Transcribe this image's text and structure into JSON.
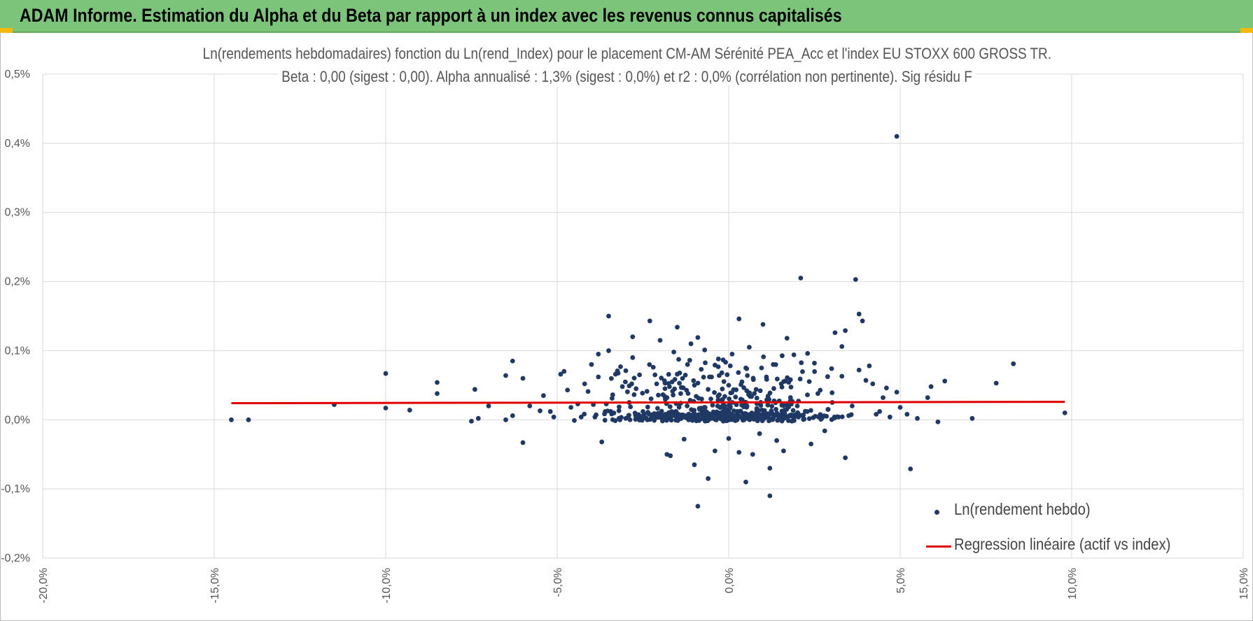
{
  "header": {
    "title": "ADAM Informe. Estimation du Alpha et du Beta par rapport à un index avec les revenus connus capitalisés"
  },
  "colors": {
    "banner": "#7dc47b",
    "accent_corner": "#f2b90f",
    "points": "#1f3864",
    "regression": "#e00000",
    "grid": "#d9d9d9"
  },
  "chart_data": {
    "type": "scatter",
    "title_line1": "Ln(rendements hebdomadaires) fonction du Ln(rend_Index) pour le placement CM-AM Sérénité PEA_Acc et l'index EU STOXX 600 GROSS TR.",
    "title_line2": "Beta : 0,00 (sigest : 0,00). Alpha annualisé : 1,3% (sigest : 0,0%) et r2 : 0,0% (corrélation non pertinente). Sig résidu F",
    "xlim": [
      -20,
      15
    ],
    "ylim": [
      -0.2,
      0.5
    ],
    "x_ticks": [
      -20,
      -15,
      -10,
      -5,
      0,
      5,
      10,
      15
    ],
    "x_tick_labels": [
      "-20,0%",
      "-15,0%",
      "-10,0%",
      "-5,0%",
      "0,0%",
      "5,0%",
      "10,0%",
      "15,0%"
    ],
    "y_ticks": [
      -0.2,
      -0.1,
      0.0,
      0.1,
      0.2,
      0.3,
      0.4,
      0.5
    ],
    "y_tick_labels": [
      "-0,2%",
      "-0,1%",
      "0,0%",
      "0,1%",
      "0,2%",
      "0,3%",
      "0,4%",
      "0,5%"
    ],
    "grid": true,
    "legend_position": "bottom-right",
    "series": [
      {
        "name": "Ln(rendement hebdo)",
        "kind": "scatter",
        "points": [
          [
            -14.5,
            0.0
          ],
          [
            -14.0,
            0.0
          ],
          [
            -11.5,
            0.022
          ],
          [
            -10.0,
            0.067
          ],
          [
            -10.0,
            0.017
          ],
          [
            -9.3,
            0.014
          ],
          [
            -8.5,
            0.054
          ],
          [
            -8.5,
            0.038
          ],
          [
            -7.5,
            -0.002
          ],
          [
            -7.4,
            0.044
          ],
          [
            -7.3,
            0.002
          ],
          [
            -7.0,
            0.02
          ],
          [
            -6.5,
            0.064
          ],
          [
            -6.3,
            0.085
          ],
          [
            -6.0,
            0.06
          ],
          [
            -6.0,
            -0.033
          ],
          [
            -6.5,
            0.0
          ],
          [
            -6.3,
            0.006
          ],
          [
            -5.8,
            0.02
          ],
          [
            -5.5,
            0.013
          ],
          [
            -5.4,
            0.035
          ],
          [
            -5.2,
            0.012
          ],
          [
            -5.1,
            0.004
          ],
          [
            -4.9,
            0.066
          ],
          [
            -4.8,
            0.07
          ],
          [
            -4.7,
            0.043
          ],
          [
            -4.6,
            0.018
          ],
          [
            -4.5,
            -0.001
          ],
          [
            -4.4,
            0.023
          ],
          [
            -4.3,
            0.004
          ],
          [
            -4.2,
            0.052
          ],
          [
            -4.1,
            0.041
          ],
          [
            -4.0,
            0.08
          ],
          [
            -3.9,
            0.004
          ],
          [
            -3.8,
            0.062
          ],
          [
            -3.8,
            0.095
          ],
          [
            -3.7,
            -0.032
          ],
          [
            -3.6,
            0.012
          ],
          [
            -3.5,
            0.1
          ],
          [
            -3.5,
            0.15
          ],
          [
            -3.4,
            0.031
          ],
          [
            -3.3,
            0.066
          ],
          [
            -3.2,
            0.002
          ],
          [
            -3.1,
            0.048
          ],
          [
            -3.0,
            0.071
          ],
          [
            -3.0,
            0.002
          ],
          [
            -2.9,
            0.025
          ],
          [
            -2.8,
            0.12
          ],
          [
            -2.8,
            0.09
          ],
          [
            -2.7,
            0.045
          ],
          [
            -2.6,
            0.065
          ],
          [
            -2.5,
            0.012
          ],
          [
            -2.4,
            0.002
          ],
          [
            -2.3,
            0.143
          ],
          [
            -2.2,
            0.076
          ],
          [
            -2.1,
            0.052
          ],
          [
            -2.0,
            0.115
          ],
          [
            -1.9,
            0.003
          ],
          [
            -1.8,
            -0.05
          ],
          [
            -1.8,
            0.032
          ],
          [
            -1.7,
            -0.052
          ],
          [
            -1.6,
            0.098
          ],
          [
            -1.5,
            0.066
          ],
          [
            -1.5,
            0.134
          ],
          [
            -1.4,
            0.024
          ],
          [
            -1.3,
            -0.028
          ],
          [
            -1.2,
            0.08
          ],
          [
            -1.1,
            0.11
          ],
          [
            -1.1,
            0.003
          ],
          [
            -1.0,
            -0.065
          ],
          [
            -1.0,
            0.05
          ],
          [
            -0.9,
            0.119
          ],
          [
            -0.9,
            -0.125
          ],
          [
            -0.8,
            0.073
          ],
          [
            -0.8,
            0.017
          ],
          [
            -0.7,
            0.101
          ],
          [
            -0.6,
            -0.085
          ],
          [
            -0.6,
            0.044
          ],
          [
            -0.5,
            0.062
          ],
          [
            -0.5,
            0.002
          ],
          [
            -0.4,
            -0.045
          ],
          [
            -0.3,
            0.088
          ],
          [
            -0.2,
            0.068
          ],
          [
            -0.1,
            0.004
          ],
          [
            0.0,
            -0.027
          ],
          [
            0.0,
            0.05
          ],
          [
            0.1,
            0.095
          ],
          [
            0.2,
            0.033
          ],
          [
            0.3,
            0.146
          ],
          [
            0.3,
            -0.047
          ],
          [
            0.4,
            0.002
          ],
          [
            0.5,
            0.075
          ],
          [
            0.5,
            -0.09
          ],
          [
            0.6,
            0.105
          ],
          [
            0.7,
            -0.05
          ],
          [
            0.8,
            0.044
          ],
          [
            0.9,
            -0.02
          ],
          [
            0.9,
            0.004
          ],
          [
            1.0,
            0.138
          ],
          [
            1.1,
            0.062
          ],
          [
            1.2,
            -0.07
          ],
          [
            1.2,
            -0.11
          ],
          [
            1.3,
            0.08
          ],
          [
            1.4,
            -0.03
          ],
          [
            1.5,
            0.003
          ],
          [
            1.6,
            -0.045
          ],
          [
            1.7,
            0.118
          ],
          [
            1.8,
            0.058
          ],
          [
            1.9,
            0.094
          ],
          [
            2.0,
            0.02
          ],
          [
            2.1,
            0.205
          ],
          [
            2.2,
            0.001
          ],
          [
            2.3,
            0.096
          ],
          [
            2.4,
            -0.035
          ],
          [
            2.5,
            0.082
          ],
          [
            2.6,
            0.038
          ],
          [
            2.7,
            0.004
          ],
          [
            2.8,
            -0.016
          ],
          [
            2.9,
            0.015
          ],
          [
            3.0,
            0.074
          ],
          [
            3.1,
            0.126
          ],
          [
            3.2,
            0.004
          ],
          [
            3.3,
            0.063
          ],
          [
            3.3,
            0.106
          ],
          [
            3.4,
            0.129
          ],
          [
            3.4,
            -0.055
          ],
          [
            3.5,
            0.006
          ],
          [
            3.6,
            0.02
          ],
          [
            3.7,
            0.203
          ],
          [
            3.8,
            0.072
          ],
          [
            3.8,
            0.153
          ],
          [
            3.9,
            0.143
          ],
          [
            4.0,
            0.057
          ],
          [
            4.1,
            0.078
          ],
          [
            4.2,
            0.052
          ],
          [
            4.3,
            0.008
          ],
          [
            4.4,
            0.012
          ],
          [
            4.5,
            0.032
          ],
          [
            4.6,
            0.046
          ],
          [
            4.7,
            0.004
          ],
          [
            4.9,
            0.41
          ],
          [
            4.9,
            0.04
          ],
          [
            5.0,
            0.018
          ],
          [
            5.2,
            0.008
          ],
          [
            5.3,
            -0.071
          ],
          [
            5.5,
            0.002
          ],
          [
            5.8,
            0.032
          ],
          [
            5.9,
            0.048
          ],
          [
            6.1,
            -0.003
          ],
          [
            6.3,
            0.056
          ],
          [
            7.1,
            0.002
          ],
          [
            7.8,
            0.053
          ],
          [
            8.3,
            0.081
          ],
          [
            9.8,
            0.01
          ]
        ]
      },
      {
        "name": "Regression linéaire (actif vs index)",
        "kind": "line",
        "x": [
          -14.5,
          9.8
        ],
        "y": [
          0.024,
          0.026
        ]
      }
    ]
  }
}
